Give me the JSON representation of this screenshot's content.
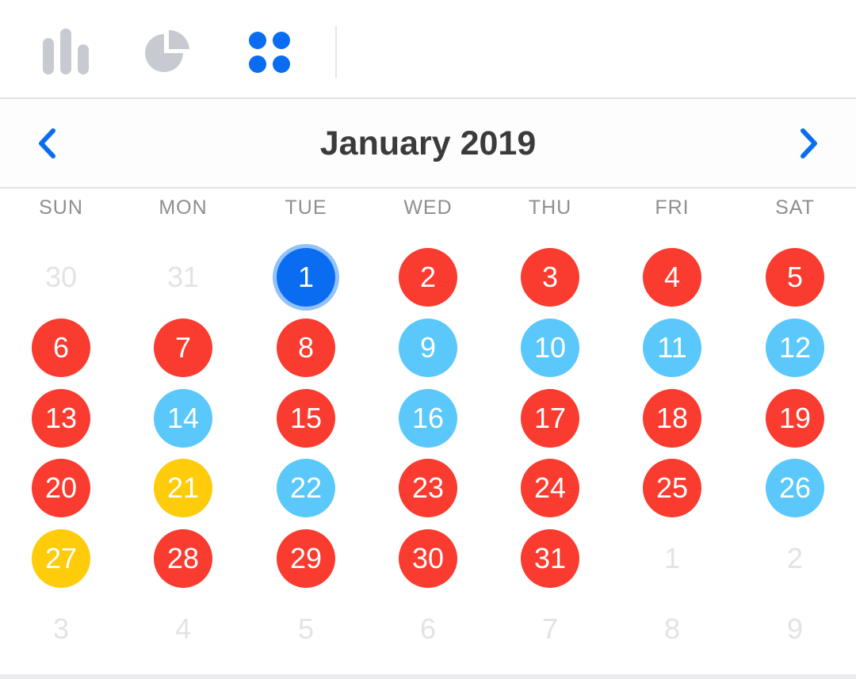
{
  "toolbar": {
    "tools": [
      {
        "name": "bar-chart-icon",
        "active": false
      },
      {
        "name": "pie-chart-icon",
        "active": false
      },
      {
        "name": "grid-icon",
        "active": true
      }
    ]
  },
  "calendar": {
    "title": "January 2019",
    "prev_icon": "chevron-left-icon",
    "next_icon": "chevron-right-icon",
    "weekdays": [
      "SUN",
      "MON",
      "TUE",
      "WED",
      "THU",
      "FRI",
      "SAT"
    ],
    "weeks": [
      [
        {
          "label": "30",
          "status": "other"
        },
        {
          "label": "31",
          "status": "other"
        },
        {
          "label": "1",
          "status": "selected"
        },
        {
          "label": "2",
          "status": "red"
        },
        {
          "label": "3",
          "status": "red"
        },
        {
          "label": "4",
          "status": "red"
        },
        {
          "label": "5",
          "status": "red"
        }
      ],
      [
        {
          "label": "6",
          "status": "red"
        },
        {
          "label": "7",
          "status": "red"
        },
        {
          "label": "8",
          "status": "red"
        },
        {
          "label": "9",
          "status": "blue"
        },
        {
          "label": "10",
          "status": "blue"
        },
        {
          "label": "11",
          "status": "blue"
        },
        {
          "label": "12",
          "status": "blue"
        }
      ],
      [
        {
          "label": "13",
          "status": "red"
        },
        {
          "label": "14",
          "status": "blue"
        },
        {
          "label": "15",
          "status": "red"
        },
        {
          "label": "16",
          "status": "blue"
        },
        {
          "label": "17",
          "status": "red"
        },
        {
          "label": "18",
          "status": "red"
        },
        {
          "label": "19",
          "status": "red"
        }
      ],
      [
        {
          "label": "20",
          "status": "red"
        },
        {
          "label": "21",
          "status": "yellow"
        },
        {
          "label": "22",
          "status": "blue"
        },
        {
          "label": "23",
          "status": "red"
        },
        {
          "label": "24",
          "status": "red"
        },
        {
          "label": "25",
          "status": "red"
        },
        {
          "label": "26",
          "status": "blue"
        }
      ],
      [
        {
          "label": "27",
          "status": "yellow"
        },
        {
          "label": "28",
          "status": "red"
        },
        {
          "label": "29",
          "status": "red"
        },
        {
          "label": "30",
          "status": "red"
        },
        {
          "label": "31",
          "status": "red"
        },
        {
          "label": "1",
          "status": "other"
        },
        {
          "label": "2",
          "status": "other"
        }
      ],
      [
        {
          "label": "3",
          "status": "other"
        },
        {
          "label": "4",
          "status": "other"
        },
        {
          "label": "5",
          "status": "other"
        },
        {
          "label": "6",
          "status": "other"
        },
        {
          "label": "7",
          "status": "other"
        },
        {
          "label": "8",
          "status": "other"
        },
        {
          "label": "9",
          "status": "other"
        }
      ]
    ]
  },
  "colors": {
    "accent": "#0a6cf0",
    "red": "#fa3b2f",
    "blue": "#5ac8fa",
    "yellow": "#fecc0a",
    "inactive_icon": "#c7cbd1"
  }
}
